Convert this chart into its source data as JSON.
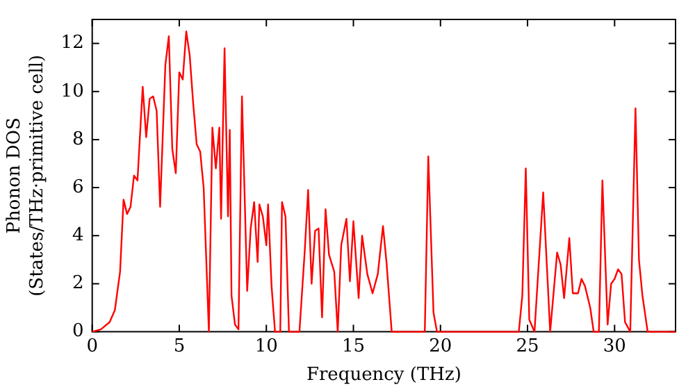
{
  "chart_data": {
    "type": "line",
    "xlabel": "Frequency (THz)",
    "ylabel": [
      "Phonon DOS",
      "(States/THz·primitive cell)"
    ],
    "xlim": [
      0,
      33.5
    ],
    "ylim": [
      0,
      13
    ],
    "xticks": [
      0,
      5,
      10,
      15,
      20,
      25,
      30
    ],
    "yticks": [
      0,
      2,
      4,
      6,
      8,
      10,
      12
    ],
    "grid": false,
    "legend": false,
    "marker": "none",
    "line_style": "solid",
    "series": [
      {
        "color": "#ff0000",
        "x": [
          0,
          0.5,
          1,
          1.3,
          1.6,
          1.8,
          2.0,
          2.2,
          2.4,
          2.6,
          2.9,
          3.1,
          3.3,
          3.5,
          3.7,
          3.9,
          4.2,
          4.4,
          4.6,
          4.8,
          5.0,
          5.2,
          5.4,
          5.6,
          5.8,
          6.0,
          6.2,
          6.4,
          6.6,
          6.7,
          6.9,
          7.1,
          7.3,
          7.4,
          7.6,
          7.8,
          7.9,
          8.0,
          8.2,
          8.4,
          8.6,
          8.9,
          9.1,
          9.3,
          9.5,
          9.6,
          9.8,
          10.0,
          10.1,
          10.3,
          10.5,
          10.8,
          10.9,
          11.1,
          11.3,
          11.9,
          12.2,
          12.4,
          12.6,
          12.8,
          13.0,
          13.2,
          13.4,
          13.6,
          13.9,
          14.1,
          14.3,
          14.6,
          14.8,
          15.0,
          15.3,
          15.5,
          15.8,
          16.1,
          16.4,
          16.7,
          16.9,
          17.2,
          19.1,
          19.3,
          19.6,
          19.8,
          24.5,
          24.7,
          24.9,
          25.1,
          25.4,
          25.9,
          26.3,
          26.7,
          26.9,
          27.1,
          27.4,
          27.6,
          27.9,
          28.1,
          28.3,
          28.6,
          28.8,
          29.1,
          29.3,
          29.6,
          29.8,
          30.0,
          30.2,
          30.4,
          30.6,
          30.9,
          31.2,
          31.4,
          31.6,
          31.9,
          33.5
        ],
        "values": [
          0,
          0.1,
          0.4,
          0.9,
          2.5,
          5.5,
          4.9,
          5.2,
          6.5,
          6.3,
          10.2,
          8.1,
          9.7,
          9.8,
          9.2,
          5.2,
          11.1,
          12.3,
          7.6,
          6.6,
          10.8,
          10.5,
          12.5,
          11.5,
          9.5,
          7.8,
          7.5,
          6.0,
          2,
          0,
          8.5,
          6.8,
          8.5,
          4.7,
          11.8,
          4.8,
          8.4,
          1.5,
          0.3,
          0.1,
          9.8,
          1.7,
          4.3,
          5.4,
          2.9,
          5.3,
          4.8,
          3.6,
          5.3,
          1.9,
          0,
          0,
          5.4,
          4.8,
          0,
          0,
          3.3,
          5.9,
          2.0,
          4.2,
          4.3,
          0.6,
          5.1,
          3.2,
          2.5,
          0,
          3.6,
          4.7,
          2.1,
          4.6,
          1.4,
          4.0,
          2.4,
          1.6,
          2.4,
          4.4,
          2.9,
          0,
          0,
          7.3,
          0.8,
          0,
          0,
          1.5,
          6.8,
          0.5,
          0,
          5.8,
          0,
          3.3,
          2.8,
          1.4,
          3.9,
          1.6,
          1.6,
          2.2,
          1.9,
          1.0,
          0,
          0,
          6.3,
          0.3,
          2.0,
          2.2,
          2.6,
          2.4,
          0.4,
          0,
          9.3,
          3.0,
          1.5,
          0,
          0
        ]
      }
    ]
  }
}
